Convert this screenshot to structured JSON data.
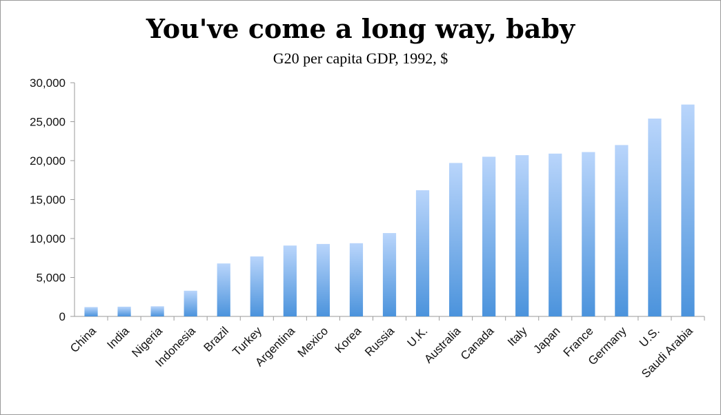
{
  "chart_data": {
    "type": "bar",
    "title": "You've come a long way, baby",
    "subtitle": "G20 per capita GDP, 1992, $",
    "xlabel": "",
    "ylabel": "",
    "ylim": [
      0,
      30000
    ],
    "yticks": [
      0,
      5000,
      10000,
      15000,
      20000,
      25000,
      30000
    ],
    "ytick_labels": [
      "0",
      "5,000",
      "10,000",
      "15,000",
      "20,000",
      "25,000",
      "30,000"
    ],
    "grid": false,
    "legend": "none",
    "categories": [
      "China",
      "India",
      "Nigeria",
      "Indonesia",
      "Brazil",
      "Turkey",
      "Argentina",
      "Mexico",
      "Korea",
      "Russia",
      "U.K.",
      "Australia",
      "Canada",
      "Italy",
      "Japan",
      "France",
      "Germany",
      "U.S.",
      "Saudi Arabia"
    ],
    "values": [
      1200,
      1250,
      1300,
      3300,
      6800,
      7700,
      9100,
      9300,
      9400,
      10700,
      16200,
      19700,
      20500,
      20700,
      20900,
      21100,
      22000,
      25400,
      27200
    ],
    "colors": {
      "bar_top": "#b9d5fb",
      "bar_bottom": "#4b93dc",
      "axis": "#9a9a9a"
    }
  }
}
